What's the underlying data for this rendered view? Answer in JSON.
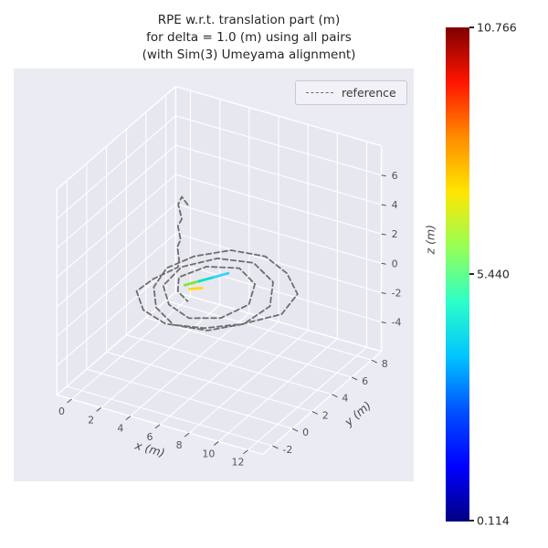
{
  "theme": {
    "figure_bg": "#ffffff",
    "axes_bg": "#ebebf3",
    "pane": "#e7e7f0",
    "grid": "#ffffff",
    "edge": "#ffffff",
    "tick_color": "#555555",
    "text_color": "#262626",
    "axis_label_color": "#4a4a4a",
    "reference_color": "#6e6e6e"
  },
  "title": {
    "line1": "RPE w.r.t. translation part (m)",
    "line2": "for delta = 1.0 (m) using all pairs",
    "line3": "(with Sim(3) Umeyama alignment)"
  },
  "legend": {
    "items": [
      {
        "label": "reference",
        "line_style": "dashed",
        "color": "#6e6e6e"
      }
    ]
  },
  "colorbar": {
    "colormap": "jet",
    "min": 0.114,
    "mid": 5.44,
    "max": 10.766,
    "min_label": "0.114",
    "mid_label": "5.440",
    "max_label": "10.766",
    "stops": [
      "#000083",
      "#0000ff",
      "#0050ff",
      "#00c4ff",
      "#2cffc8",
      "#97ff56",
      "#ffe600",
      "#ff8c00",
      "#ff1500",
      "#800000"
    ]
  },
  "chart_data": {
    "type": "line",
    "projection": "3d",
    "title": "RPE w.r.t. translation part (m) for delta = 1.0 (m) using all pairs (with Sim(3) Umeyama alignment)",
    "xlabel": "x (m)",
    "ylabel": "y (m)",
    "zlabel": "z (m)",
    "x_ticks": [
      0,
      2,
      4,
      6,
      8,
      10,
      12
    ],
    "y_ticks": [
      -2,
      0,
      2,
      4,
      6,
      8
    ],
    "z_ticks": [
      -4,
      -2,
      0,
      2,
      4,
      6
    ],
    "xlim": [
      -1,
      13
    ],
    "ylim": [
      -3,
      9
    ],
    "zlim": [
      -6,
      8
    ],
    "grid": true,
    "legend_position": "upper right",
    "colorbar_range": [
      0.114,
      10.766
    ],
    "series": [
      {
        "name": "reference",
        "style": "dashed",
        "color": "#6e6e6e",
        "points": [
          [
            5.2,
            1.0,
            6.4
          ],
          [
            4.6,
            1.3,
            6.6
          ],
          [
            4.25,
            1.45,
            5.9
          ],
          [
            4.7,
            1.15,
            5.2
          ],
          [
            4.3,
            1.35,
            4.5
          ],
          [
            4.65,
            1.1,
            3.8
          ],
          [
            4.3,
            1.3,
            3.1
          ],
          [
            4.55,
            1.1,
            2.4
          ],
          [
            4.4,
            1.2,
            1.8
          ],
          [
            3.4,
            0.2,
            1.3
          ],
          [
            3.0,
            -0.9,
            1.0
          ],
          [
            4.2,
            -2.0,
            0.7
          ],
          [
            6.0,
            -2.4,
            0.5
          ],
          [
            8.2,
            -1.8,
            0.5
          ],
          [
            10.0,
            -0.6,
            0.6
          ],
          [
            11.6,
            1.0,
            0.8
          ],
          [
            11.4,
            2.9,
            1.0
          ],
          [
            9.8,
            4.2,
            1.2
          ],
          [
            7.8,
            5.0,
            1.3
          ],
          [
            5.6,
            4.8,
            1.2
          ],
          [
            3.9,
            3.6,
            1.0
          ],
          [
            3.1,
            2.0,
            0.9
          ],
          [
            3.3,
            0.4,
            0.6
          ],
          [
            4.4,
            -1.0,
            0.35
          ],
          [
            6.2,
            -1.9,
            0.2
          ],
          [
            8.3,
            -1.6,
            0.25
          ],
          [
            9.9,
            -0.3,
            0.4
          ],
          [
            10.4,
            1.6,
            0.65
          ],
          [
            9.4,
            3.4,
            0.95
          ],
          [
            7.4,
            4.4,
            1.1
          ],
          [
            5.2,
            4.0,
            1.0
          ],
          [
            3.7,
            2.6,
            0.8
          ],
          [
            3.6,
            0.9,
            0.5
          ],
          [
            4.8,
            -0.3,
            0.25
          ],
          [
            6.5,
            -0.8,
            0.1
          ],
          [
            8.2,
            -0.1,
            0.2
          ],
          [
            9.1,
            1.4,
            0.5
          ],
          [
            8.5,
            2.9,
            0.85
          ],
          [
            6.9,
            3.7,
            1.0
          ],
          [
            5.0,
            3.2,
            0.85
          ],
          [
            4.0,
            1.9,
            0.6
          ],
          [
            4.6,
            0.9,
            0.4
          ],
          [
            5.6,
            0.4,
            0.3
          ]
        ]
      },
      {
        "name": "rpe_colored",
        "style": "solid",
        "colormap": "jet",
        "points": [
          [
            5.2,
            0.7,
            1.1
          ],
          [
            5.75,
            1.35,
            1.15
          ],
          [
            6.3,
            2.0,
            1.2
          ],
          [
            6.85,
            2.65,
            1.25
          ]
        ],
        "segment_colors": [
          "#7ce83c",
          "#00e0c8",
          "#35d1ff"
        ]
      },
      {
        "name": "rpe_colored_2",
        "style": "solid",
        "colormap": "jet",
        "points": [
          [
            5.5,
            0.75,
            0.9
          ],
          [
            6.1,
            1.1,
            0.92
          ]
        ],
        "segment_colors": [
          "#ffd90f"
        ]
      }
    ]
  }
}
